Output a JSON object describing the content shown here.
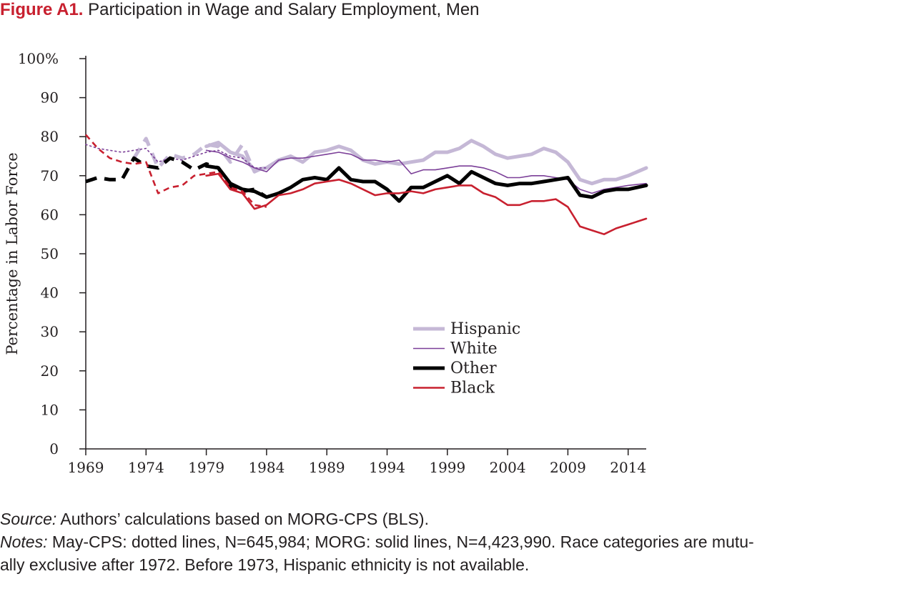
{
  "figure": {
    "label": "Figure A1.",
    "title": "Participation in Wage and Salary Employment, Men"
  },
  "footer": {
    "source_label": "Source:",
    "source_text": "Authors’ calculations based on MORG-CPS (BLS).",
    "notes_label": "Notes:",
    "notes_line1": "May-CPS: dotted lines, N=645,984; MORG: solid lines, N=4,423,990. Race categories are mutu-",
    "notes_line2": "ally exclusive after 1972. Before 1973, Hispanic ethnicity is not available."
  },
  "chart_data": {
    "type": "line",
    "title": "",
    "xlabel": "",
    "ylabel": "Percentage in Labor Force",
    "xlim": [
      1969,
      2015.5
    ],
    "ylim": [
      0,
      100
    ],
    "x_ticks": [
      1969,
      1974,
      1979,
      1984,
      1989,
      1994,
      1999,
      2004,
      2009,
      2014
    ],
    "y_ticks": [
      0,
      10,
      20,
      30,
      40,
      50,
      60,
      70,
      80,
      90,
      100
    ],
    "y_tick_labels": [
      "0",
      "10",
      "20",
      "30",
      "40",
      "50",
      "60",
      "70",
      "80",
      "90",
      "100%"
    ],
    "grid": false,
    "legend": "center-right",
    "series": [
      {
        "name": "Hispanic",
        "color": "#c5b8d6",
        "width": 5,
        "segments": [
          {
            "style": "dashed",
            "x": [
              1973,
              1974,
              1975,
              1976,
              1977,
              1978,
              1979,
              1980,
              1981,
              1982,
              1983,
              1984
            ],
            "y": [
              74.5,
              79.5,
              72.0,
              75.5,
              74.5,
              75.5,
              78.0,
              77.5,
              73.5,
              78.0,
              71.0,
              72.5
            ]
          },
          {
            "style": "solid",
            "x": [
              1979,
              1980,
              1981,
              1982,
              1983,
              1984,
              1985,
              1986,
              1987,
              1988,
              1989,
              1990,
              1991,
              1992,
              1993,
              1994,
              1995,
              1996,
              1997,
              1998,
              1999,
              2000,
              2001,
              2002,
              2003,
              2004,
              2005,
              2006,
              2007,
              2008,
              2009,
              2010,
              2011,
              2012,
              2013,
              2014,
              2015.5
            ],
            "y": [
              77.5,
              78.5,
              76.0,
              75.0,
              71.5,
              72.0,
              74.0,
              75.0,
              73.5,
              76.0,
              76.5,
              77.5,
              76.5,
              74.0,
              73.0,
              73.5,
              73.0,
              73.5,
              74.0,
              76.0,
              76.0,
              77.0,
              79.0,
              77.5,
              75.5,
              74.5,
              75.0,
              75.5,
              77.0,
              76.0,
              73.5,
              69.0,
              68.0,
              69.0,
              69.0,
              70.0,
              72.0
            ]
          }
        ]
      },
      {
        "name": "White",
        "color": "#7b3f98",
        "width": 1.6,
        "segments": [
          {
            "style": "dotted",
            "x": [
              1969,
              1970,
              1971,
              1972,
              1973,
              1974,
              1975,
              1976,
              1977,
              1978,
              1979,
              1980,
              1981,
              1982,
              1983,
              1984
            ],
            "y": [
              78.0,
              77.0,
              76.5,
              76.0,
              76.5,
              77.0,
              73.5,
              74.5,
              74.0,
              75.0,
              76.0,
              76.5,
              75.0,
              74.5,
              72.0,
              72.0
            ]
          },
          {
            "style": "solid",
            "x": [
              1979,
              1980,
              1981,
              1982,
              1983,
              1984,
              1985,
              1986,
              1987,
              1988,
              1989,
              1990,
              1991,
              1992,
              1993,
              1994,
              1995,
              1996,
              1997,
              1998,
              1999,
              2000,
              2001,
              2002,
              2003,
              2004,
              2005,
              2006,
              2007,
              2008,
              2009,
              2010,
              2011,
              2012,
              2013,
              2014,
              2015.5
            ],
            "y": [
              76.5,
              76.0,
              74.5,
              73.5,
              72.0,
              71.0,
              74.0,
              74.5,
              74.5,
              75.0,
              75.5,
              76.0,
              75.5,
              74.0,
              74.0,
              73.5,
              74.0,
              70.5,
              71.5,
              71.5,
              72.0,
              72.5,
              72.5,
              72.0,
              71.0,
              69.5,
              69.5,
              70.0,
              70.0,
              69.5,
              69.0,
              66.5,
              65.5,
              66.5,
              67.0,
              67.5,
              68.0
            ]
          }
        ]
      },
      {
        "name": "Other",
        "color": "#000000",
        "width": 5,
        "segments": [
          {
            "style": "dashed",
            "x": [
              1969,
              1970,
              1971,
              1972,
              1973,
              1974,
              1975,
              1976,
              1977,
              1978,
              1979,
              1980,
              1981,
              1982,
              1983,
              1984
            ],
            "y": [
              68.5,
              69.5,
              69.0,
              69.0,
              74.5,
              72.5,
              72.0,
              74.5,
              73.5,
              71.5,
              73.0,
              72.0,
              67.0,
              66.0,
              66.5,
              64.5
            ]
          },
          {
            "style": "solid",
            "x": [
              1979,
              1980,
              1981,
              1982,
              1983,
              1984,
              1985,
              1986,
              1987,
              1988,
              1989,
              1990,
              1991,
              1992,
              1993,
              1994,
              1995,
              1996,
              1997,
              1998,
              1999,
              2000,
              2001,
              2002,
              2003,
              2004,
              2005,
              2006,
              2007,
              2008,
              2009,
              2010,
              2011,
              2012,
              2013,
              2014,
              2015.5
            ],
            "y": [
              72.5,
              72.0,
              68.0,
              66.5,
              66.0,
              64.5,
              65.5,
              67.0,
              69.0,
              69.5,
              69.0,
              72.0,
              69.0,
              68.5,
              68.5,
              66.5,
              63.5,
              67.0,
              67.0,
              68.5,
              70.0,
              68.0,
              71.0,
              69.5,
              68.0,
              67.5,
              68.0,
              68.0,
              68.5,
              69.0,
              69.5,
              65.0,
              64.5,
              66.0,
              66.5,
              66.5,
              67.5
            ]
          }
        ]
      },
      {
        "name": "Black",
        "color": "#c8202f",
        "width": 2.6,
        "segments": [
          {
            "style": "dashed",
            "x": [
              1969,
              1970,
              1971,
              1972,
              1973,
              1974,
              1975,
              1976,
              1977,
              1978,
              1979,
              1980,
              1981,
              1982,
              1983,
              1984
            ],
            "y": [
              80.5,
              77.0,
              74.5,
              73.5,
              73.0,
              73.5,
              65.5,
              67.0,
              67.5,
              70.0,
              70.5,
              71.0,
              67.0,
              66.0,
              62.5,
              62.0
            ]
          },
          {
            "style": "solid",
            "x": [
              1979,
              1980,
              1981,
              1982,
              1983,
              1984,
              1985,
              1986,
              1987,
              1988,
              1989,
              1990,
              1991,
              1992,
              1993,
              1994,
              1995,
              1996,
              1997,
              1998,
              1999,
              2000,
              2001,
              2002,
              2003,
              2004,
              2005,
              2006,
              2007,
              2008,
              2009,
              2010,
              2011,
              2012,
              2013,
              2014,
              2015.5
            ],
            "y": [
              70.0,
              70.5,
              66.5,
              65.5,
              61.5,
              62.5,
              65.0,
              65.5,
              66.5,
              68.0,
              68.5,
              69.0,
              68.0,
              66.5,
              65.0,
              65.5,
              65.5,
              66.0,
              65.5,
              66.5,
              67.0,
              67.5,
              67.5,
              65.5,
              64.5,
              62.5,
              62.5,
              63.5,
              63.5,
              64.0,
              62.0,
              57.0,
              56.0,
              55.0,
              56.5,
              57.5,
              59.0
            ]
          }
        ]
      }
    ]
  }
}
